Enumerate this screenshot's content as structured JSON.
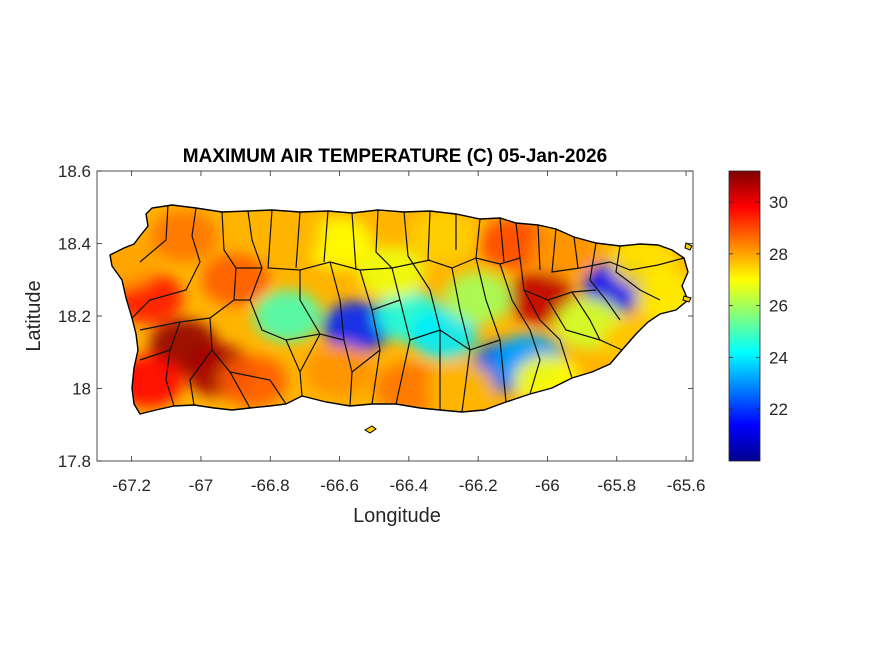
{
  "chart_data": {
    "type": "heatmap",
    "title": "MAXIMUM AIR TEMPERATURE (C) 05-Jan-2026",
    "xlabel": "Longitude",
    "ylabel": "Latitude",
    "xlim": [
      -67.3,
      -65.58
    ],
    "ylim": [
      17.8,
      18.6
    ],
    "xticks": [
      -67.2,
      -67,
      -66.8,
      -66.6,
      -66.4,
      -66.2,
      -66,
      -65.8,
      -65.6
    ],
    "xtick_labels": [
      "-67.2",
      "-67",
      "-66.8",
      "-66.6",
      "-66.4",
      "-66.2",
      "-66",
      "-65.8",
      "-65.6"
    ],
    "yticks": [
      17.8,
      18,
      18.2,
      18.4,
      18.6
    ],
    "ytick_labels": [
      "17.8",
      "18",
      "18.2",
      "18.4",
      "18.6"
    ],
    "colorbar": {
      "colormap": "jet",
      "range": [
        20,
        31.2
      ],
      "ticks": [
        22,
        24,
        26,
        28,
        30
      ],
      "tick_labels": [
        "22",
        "24",
        "26",
        "28",
        "30"
      ]
    },
    "field_samples": [
      {
        "lon": -67.15,
        "lat": 18.25,
        "t": 29.5
      },
      {
        "lon": -67.05,
        "lat": 18.12,
        "t": 31.0
      },
      {
        "lon": -66.95,
        "lat": 18.05,
        "t": 30.8
      },
      {
        "lon": -67.15,
        "lat": 18.02,
        "t": 29.8
      },
      {
        "lon": -66.9,
        "lat": 18.3,
        "t": 28.8
      },
      {
        "lon": -67.05,
        "lat": 18.42,
        "t": 28.5
      },
      {
        "lon": -66.75,
        "lat": 18.2,
        "t": 25.0
      },
      {
        "lon": -66.55,
        "lat": 18.17,
        "t": 21.8
      },
      {
        "lon": -66.4,
        "lat": 18.2,
        "t": 24.5
      },
      {
        "lon": -66.3,
        "lat": 18.15,
        "t": 24.0
      },
      {
        "lon": -66.6,
        "lat": 18.05,
        "t": 28.2
      },
      {
        "lon": -66.4,
        "lat": 18.0,
        "t": 28.5
      },
      {
        "lon": -66.6,
        "lat": 18.4,
        "t": 27.0
      },
      {
        "lon": -66.3,
        "lat": 18.42,
        "t": 27.5
      },
      {
        "lon": -66.1,
        "lat": 18.4,
        "t": 29.0
      },
      {
        "lon": -66.02,
        "lat": 18.25,
        "t": 30.5
      },
      {
        "lon": -66.12,
        "lat": 18.06,
        "t": 22.5
      },
      {
        "lon": -66.05,
        "lat": 18.08,
        "t": 23.2
      },
      {
        "lon": -66.0,
        "lat": 18.02,
        "t": 27.0
      },
      {
        "lon": -65.8,
        "lat": 18.28,
        "t": 21.5
      },
      {
        "lon": -65.88,
        "lat": 18.18,
        "t": 26.5
      },
      {
        "lon": -65.75,
        "lat": 18.12,
        "t": 27.6
      },
      {
        "lon": -65.72,
        "lat": 18.35,
        "t": 27.3
      },
      {
        "lon": -65.95,
        "lat": 18.38,
        "t": 28.2
      },
      {
        "lon": -66.2,
        "lat": 18.25,
        "t": 26.0
      },
      {
        "lon": -66.85,
        "lat": 18.02,
        "t": 28.8
      },
      {
        "lon": -66.75,
        "lat": 18.42,
        "t": 27.8
      },
      {
        "lon": -66.45,
        "lat": 18.32,
        "t": 26.8
      },
      {
        "lon": -66.25,
        "lat": 18.0,
        "t": 27.8
      },
      {
        "lon": -65.65,
        "lat": 18.25,
        "t": 27.2
      },
      {
        "lon": -67.22,
        "lat": 18.35,
        "t": 28.0
      }
    ]
  }
}
